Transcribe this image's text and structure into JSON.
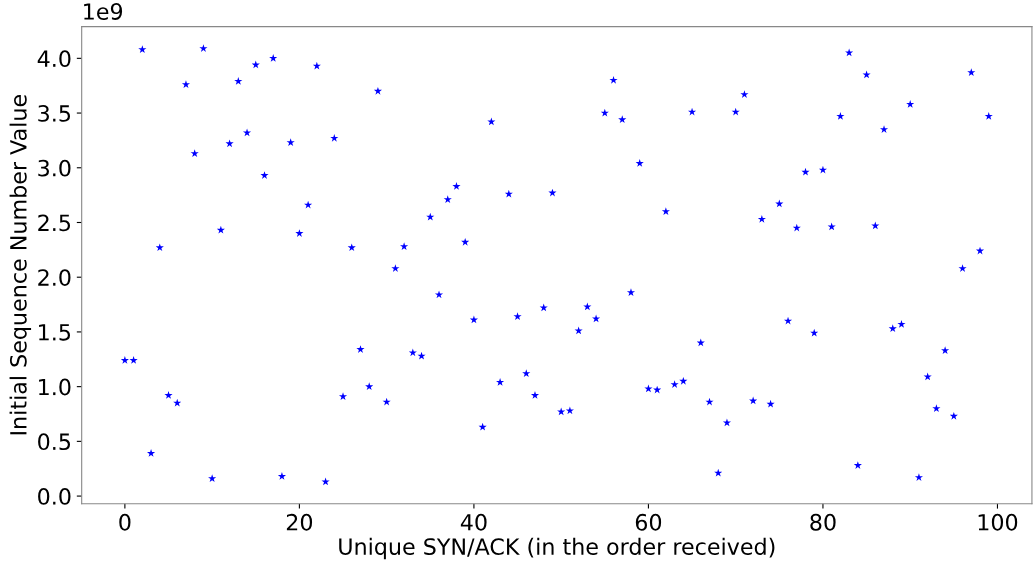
{
  "chart_data": {
    "type": "scatter",
    "xlabel": "Unique SYN/ACK (in the order received)",
    "ylabel": "Initial Sequence Number Value",
    "x": [
      0,
      1,
      2,
      3,
      4,
      5,
      6,
      7,
      8,
      9,
      10,
      11,
      12,
      13,
      14,
      15,
      16,
      17,
      18,
      19,
      20,
      21,
      22,
      23,
      24,
      25,
      26,
      27,
      28,
      29,
      30,
      31,
      32,
      33,
      34,
      35,
      36,
      37,
      38,
      39,
      40,
      41,
      42,
      43,
      44,
      45,
      46,
      47,
      48,
      49,
      50,
      51,
      52,
      53,
      54,
      55,
      56,
      57,
      58,
      59,
      60,
      61,
      62,
      63,
      64,
      65,
      66,
      67,
      68,
      69,
      70,
      71,
      72,
      73,
      74,
      75,
      76,
      77,
      78,
      79,
      80,
      81,
      82,
      83,
      84,
      85,
      86,
      87,
      88,
      89,
      90,
      91,
      92,
      93,
      94,
      95,
      96,
      97,
      98,
      99
    ],
    "series": [
      {
        "color": "#0000ff",
        "values": [
          1.24,
          1.24,
          4.08,
          0.39,
          2.27,
          0.92,
          0.85,
          3.76,
          3.13,
          4.09,
          0.16,
          2.43,
          3.22,
          3.79,
          3.32,
          3.94,
          2.93,
          4.0,
          0.18,
          3.23,
          2.4,
          2.66,
          3.93,
          0.13,
          3.27,
          0.91,
          2.27,
          1.34,
          1.0,
          3.7,
          0.86,
          2.08,
          2.28,
          1.31,
          1.28,
          2.55,
          1.84,
          2.71,
          2.83,
          2.32,
          1.61,
          0.63,
          3.42,
          1.04,
          2.76,
          1.64,
          1.12,
          0.92,
          1.72,
          2.77,
          0.77,
          0.78,
          1.51,
          1.73,
          1.62,
          3.5,
          3.8,
          3.44,
          1.86,
          3.04,
          0.98,
          0.97,
          2.6,
          1.02,
          1.05,
          3.51,
          1.4,
          0.86,
          0.21,
          0.67,
          3.51,
          3.67,
          0.87,
          2.53,
          0.84,
          2.67,
          1.6,
          2.45,
          2.96,
          1.49,
          2.98,
          2.46,
          3.47,
          4.05,
          0.28,
          3.85,
          2.47,
          3.35,
          1.53,
          1.57,
          3.58,
          0.17,
          1.09,
          0.8,
          1.33,
          0.73,
          2.08,
          3.87,
          2.24,
          3.47
        ]
      }
    ],
    "marker": "star",
    "xlim": [
      -4.95,
      103.95
    ],
    "xticks": [
      0,
      20,
      40,
      60,
      80,
      100
    ],
    "ylim": [
      -0.07,
      4.29
    ],
    "yticks": [
      {
        "value": 0,
        "label": "0.0"
      },
      0.5,
      {
        "value": 1,
        "label": "1.0"
      },
      1.5,
      {
        "value": 2,
        "label": "2.0"
      },
      2.5,
      {
        "value": 3,
        "label": "3.0"
      },
      3.5,
      {
        "value": 4,
        "label": "4.0"
      }
    ],
    "annotations": [
      "1e9"
    ],
    "grid": false,
    "legend": false
  }
}
